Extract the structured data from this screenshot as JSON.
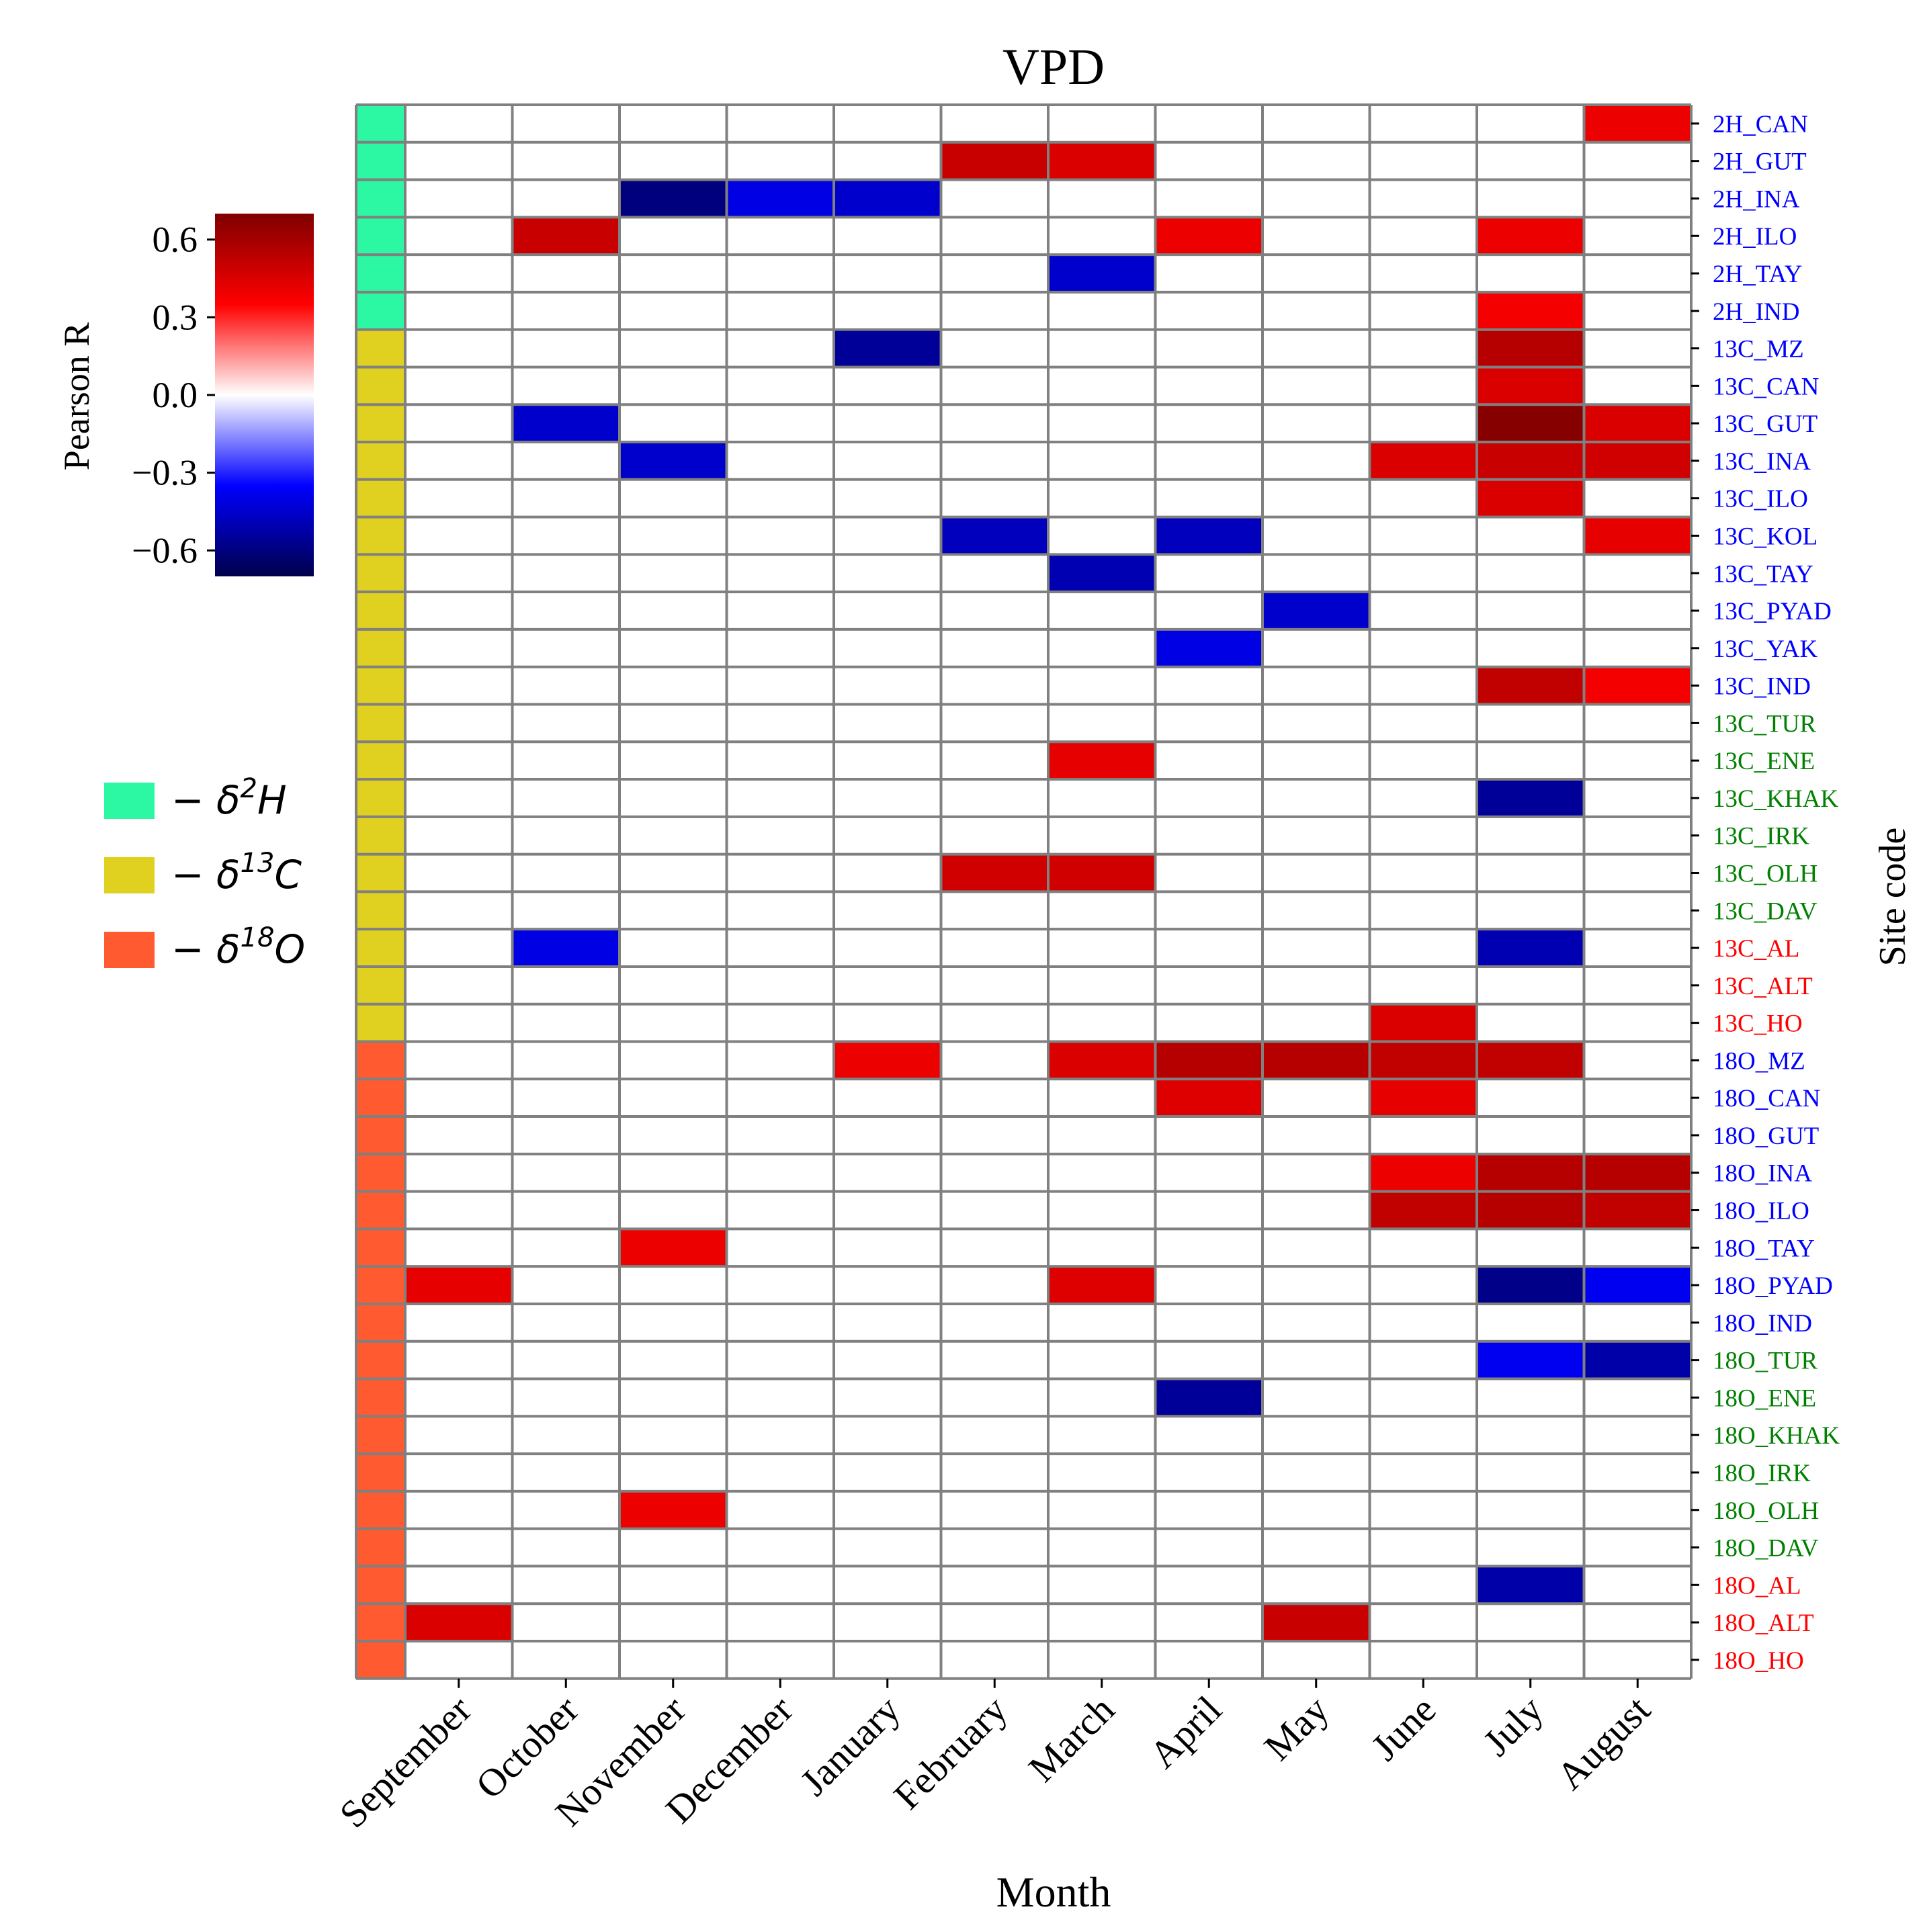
{
  "chart_data": {
    "type": "heatmap",
    "title": "VPD",
    "xlabel": "Month",
    "ylabel": "Site code",
    "colorbar": {
      "label": "Pearson R",
      "ticks": [
        0.6,
        0.3,
        0.0,
        -0.3,
        -0.6
      ],
      "tick_labels": [
        "0.6",
        "0.3",
        "0.0",
        "−0.3",
        "−0.6"
      ],
      "range": [
        -0.7,
        0.7
      ],
      "colormap": "seismic"
    },
    "x_categories": [
      "September",
      "October",
      "November",
      "December",
      "January",
      "February",
      "March",
      "April",
      "May",
      "June",
      "July",
      "August"
    ],
    "rows": [
      {
        "label": "2H_CAN",
        "group": "2H",
        "label_color": "#0000ff"
      },
      {
        "label": "2H_GUT",
        "group": "2H",
        "label_color": "#0000ff"
      },
      {
        "label": "2H_INA",
        "group": "2H",
        "label_color": "#0000ff"
      },
      {
        "label": "2H_ILO",
        "group": "2H",
        "label_color": "#0000ff"
      },
      {
        "label": "2H_TAY",
        "group": "2H",
        "label_color": "#0000ff"
      },
      {
        "label": "2H_IND",
        "group": "2H",
        "label_color": "#0000ff"
      },
      {
        "label": "13C_MZ",
        "group": "13C",
        "label_color": "#0000ff"
      },
      {
        "label": "13C_CAN",
        "group": "13C",
        "label_color": "#0000ff"
      },
      {
        "label": "13C_GUT",
        "group": "13C",
        "label_color": "#0000ff"
      },
      {
        "label": "13C_INA",
        "group": "13C",
        "label_color": "#0000ff"
      },
      {
        "label": "13C_ILO",
        "group": "13C",
        "label_color": "#0000ff"
      },
      {
        "label": "13C_KOL",
        "group": "13C",
        "label_color": "#0000ff"
      },
      {
        "label": "13C_TAY",
        "group": "13C",
        "label_color": "#0000ff"
      },
      {
        "label": "13C_PYAD",
        "group": "13C",
        "label_color": "#0000ff"
      },
      {
        "label": "13C_YAK",
        "group": "13C",
        "label_color": "#0000ff"
      },
      {
        "label": "13C_IND",
        "group": "13C",
        "label_color": "#0000ff"
      },
      {
        "label": "13C_TUR",
        "group": "13C",
        "label_color": "#008000"
      },
      {
        "label": "13C_ENE",
        "group": "13C",
        "label_color": "#008000"
      },
      {
        "label": "13C_KHAK",
        "group": "13C",
        "label_color": "#008000"
      },
      {
        "label": "13C_IRK",
        "group": "13C",
        "label_color": "#008000"
      },
      {
        "label": "13C_OLH",
        "group": "13C",
        "label_color": "#008000"
      },
      {
        "label": "13C_DAV",
        "group": "13C",
        "label_color": "#008000"
      },
      {
        "label": "13C_AL",
        "group": "13C",
        "label_color": "#ff0000"
      },
      {
        "label": "13C_ALT",
        "group": "13C",
        "label_color": "#ff0000"
      },
      {
        "label": "13C_HO",
        "group": "13C",
        "label_color": "#ff0000"
      },
      {
        "label": "18O_MZ",
        "group": "18O",
        "label_color": "#0000ff"
      },
      {
        "label": "18O_CAN",
        "group": "18O",
        "label_color": "#0000ff"
      },
      {
        "label": "18O_GUT",
        "group": "18O",
        "label_color": "#0000ff"
      },
      {
        "label": "18O_INA",
        "group": "18O",
        "label_color": "#0000ff"
      },
      {
        "label": "18O_ILO",
        "group": "18O",
        "label_color": "#0000ff"
      },
      {
        "label": "18O_TAY",
        "group": "18O",
        "label_color": "#0000ff"
      },
      {
        "label": "18O_PYAD",
        "group": "18O",
        "label_color": "#0000ff"
      },
      {
        "label": "18O_IND",
        "group": "18O",
        "label_color": "#0000ff"
      },
      {
        "label": "18O_TUR",
        "group": "18O",
        "label_color": "#008000"
      },
      {
        "label": "18O_ENE",
        "group": "18O",
        "label_color": "#008000"
      },
      {
        "label": "18O_KHAK",
        "group": "18O",
        "label_color": "#008000"
      },
      {
        "label": "18O_IRK",
        "group": "18O",
        "label_color": "#008000"
      },
      {
        "label": "18O_OLH",
        "group": "18O",
        "label_color": "#008000"
      },
      {
        "label": "18O_DAV",
        "group": "18O",
        "label_color": "#008000"
      },
      {
        "label": "18O_AL",
        "group": "18O",
        "label_color": "#ff0000"
      },
      {
        "label": "18O_ALT",
        "group": "18O",
        "label_color": "#ff0000"
      },
      {
        "label": "18O_HO",
        "group": "18O",
        "label_color": "#ff0000"
      }
    ],
    "groups": [
      {
        "key": "2H",
        "color": "#2cf7a3",
        "legend_prefix": "− δ",
        "sup": "2",
        "element": "H"
      },
      {
        "key": "13C",
        "color": "#e0d020",
        "legend_prefix": "− δ",
        "sup": "13",
        "element": "C"
      },
      {
        "key": "18O",
        "color": "#ff5a30",
        "legend_prefix": "− δ",
        "sup": "18",
        "element": "O"
      }
    ],
    "cells": [
      {
        "row": "2H_CAN",
        "month": "August",
        "r": 0.4
      },
      {
        "row": "2H_GUT",
        "month": "February",
        "r": 0.5
      },
      {
        "row": "2H_GUT",
        "month": "March",
        "r": 0.45
      },
      {
        "row": "2H_INA",
        "month": "November",
        "r": -0.6
      },
      {
        "row": "2H_INA",
        "month": "December",
        "r": -0.4
      },
      {
        "row": "2H_INA",
        "month": "January",
        "r": -0.45
      },
      {
        "row": "2H_ILO",
        "month": "October",
        "r": 0.5
      },
      {
        "row": "2H_ILO",
        "month": "April",
        "r": 0.4
      },
      {
        "row": "2H_ILO",
        "month": "July",
        "r": 0.4
      },
      {
        "row": "2H_TAY",
        "month": "March",
        "r": -0.45
      },
      {
        "row": "2H_IND",
        "month": "July",
        "r": 0.38
      },
      {
        "row": "13C_MZ",
        "month": "January",
        "r": -0.55
      },
      {
        "row": "13C_MZ",
        "month": "July",
        "r": 0.55
      },
      {
        "row": "13C_CAN",
        "month": "July",
        "r": 0.45
      },
      {
        "row": "13C_GUT",
        "month": "October",
        "r": -0.45
      },
      {
        "row": "13C_GUT",
        "month": "July",
        "r": 0.68
      },
      {
        "row": "13C_GUT",
        "month": "August",
        "r": 0.45
      },
      {
        "row": "13C_INA",
        "month": "November",
        "r": -0.45
      },
      {
        "row": "13C_INA",
        "month": "June",
        "r": 0.45
      },
      {
        "row": "13C_INA",
        "month": "July",
        "r": 0.5
      },
      {
        "row": "13C_INA",
        "month": "August",
        "r": 0.48
      },
      {
        "row": "13C_ILO",
        "month": "July",
        "r": 0.45
      },
      {
        "row": "13C_KOL",
        "month": "February",
        "r": -0.48
      },
      {
        "row": "13C_KOL",
        "month": "April",
        "r": -0.48
      },
      {
        "row": "13C_KOL",
        "month": "August",
        "r": 0.42
      },
      {
        "row": "13C_TAY",
        "month": "March",
        "r": -0.5
      },
      {
        "row": "13C_PYAD",
        "month": "May",
        "r": -0.45
      },
      {
        "row": "13C_YAK",
        "month": "April",
        "r": -0.4
      },
      {
        "row": "13C_IND",
        "month": "July",
        "r": 0.52
      },
      {
        "row": "13C_IND",
        "month": "August",
        "r": 0.38
      },
      {
        "row": "13C_ENE",
        "month": "March",
        "r": 0.42
      },
      {
        "row": "13C_KHAK",
        "month": "July",
        "r": -0.55
      },
      {
        "row": "13C_OLH",
        "month": "February",
        "r": 0.48
      },
      {
        "row": "13C_OLH",
        "month": "March",
        "r": 0.48
      },
      {
        "row": "13C_AL",
        "month": "October",
        "r": -0.4
      },
      {
        "row": "13C_AL",
        "month": "July",
        "r": -0.5
      },
      {
        "row": "13C_HO",
        "month": "June",
        "r": 0.45
      },
      {
        "row": "18O_MZ",
        "month": "January",
        "r": 0.4
      },
      {
        "row": "18O_MZ",
        "month": "March",
        "r": 0.45
      },
      {
        "row": "18O_MZ",
        "month": "April",
        "r": 0.55
      },
      {
        "row": "18O_MZ",
        "month": "May",
        "r": 0.55
      },
      {
        "row": "18O_MZ",
        "month": "June",
        "r": 0.52
      },
      {
        "row": "18O_MZ",
        "month": "July",
        "r": 0.52
      },
      {
        "row": "18O_CAN",
        "month": "April",
        "r": 0.44
      },
      {
        "row": "18O_CAN",
        "month": "June",
        "r": 0.42
      },
      {
        "row": "18O_INA",
        "month": "June",
        "r": 0.4
      },
      {
        "row": "18O_INA",
        "month": "July",
        "r": 0.55
      },
      {
        "row": "18O_INA",
        "month": "August",
        "r": 0.55
      },
      {
        "row": "18O_ILO",
        "month": "June",
        "r": 0.52
      },
      {
        "row": "18O_ILO",
        "month": "July",
        "r": 0.55
      },
      {
        "row": "18O_ILO",
        "month": "August",
        "r": 0.52
      },
      {
        "row": "18O_TAY",
        "month": "November",
        "r": 0.4
      },
      {
        "row": "18O_PYAD",
        "month": "September",
        "r": 0.42
      },
      {
        "row": "18O_PYAD",
        "month": "March",
        "r": 0.44
      },
      {
        "row": "18O_PYAD",
        "month": "July",
        "r": -0.58
      },
      {
        "row": "18O_PYAD",
        "month": "August",
        "r": -0.38
      },
      {
        "row": "18O_TUR",
        "month": "July",
        "r": -0.38
      },
      {
        "row": "18O_TUR",
        "month": "August",
        "r": -0.52
      },
      {
        "row": "18O_ENE",
        "month": "April",
        "r": -0.55
      },
      {
        "row": "18O_OLH",
        "month": "November",
        "r": 0.4
      },
      {
        "row": "18O_AL",
        "month": "July",
        "r": -0.52
      },
      {
        "row": "18O_ALT",
        "month": "September",
        "r": 0.45
      },
      {
        "row": "18O_ALT",
        "month": "May",
        "r": 0.5
      }
    ]
  }
}
